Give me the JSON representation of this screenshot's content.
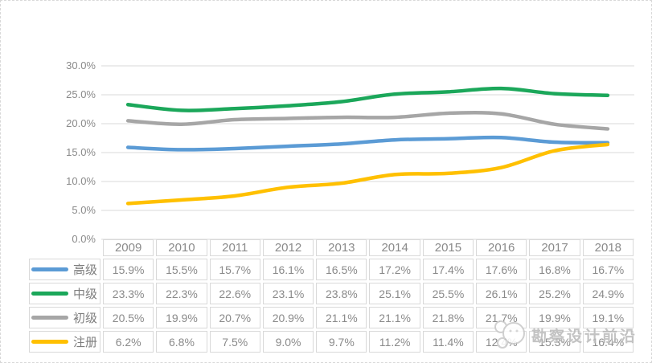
{
  "chart_data": {
    "type": "line",
    "categories": [
      "2009",
      "2010",
      "2011",
      "2012",
      "2013",
      "2014",
      "2015",
      "2016",
      "2017",
      "2018"
    ],
    "series": [
      {
        "name": "高级",
        "color": "#5B9BD5",
        "values": [
          15.9,
          15.5,
          15.7,
          16.1,
          16.5,
          17.2,
          17.4,
          17.6,
          16.8,
          16.7
        ]
      },
      {
        "name": "中级",
        "color": "#1BA75A",
        "values": [
          23.3,
          22.3,
          22.6,
          23.1,
          23.8,
          25.1,
          25.5,
          26.1,
          25.2,
          24.9
        ]
      },
      {
        "name": "初级",
        "color": "#A6A6A6",
        "values": [
          20.5,
          19.9,
          20.7,
          20.9,
          21.1,
          21.1,
          21.8,
          21.7,
          19.9,
          19.1
        ]
      },
      {
        "name": "注册",
        "color": "#FFC000",
        "values": [
          6.2,
          6.8,
          7.5,
          9.0,
          9.7,
          11.2,
          11.4,
          12.4,
          15.3,
          16.4
        ]
      }
    ],
    "title": "",
    "xlabel": "",
    "ylabel": "",
    "ylim": [
      0,
      30
    ],
    "y_tick_labels": [
      "0.0%",
      "5.0%",
      "10.0%",
      "15.0%",
      "20.0%",
      "25.0%",
      "30.0%"
    ],
    "grid": true,
    "smooth_lines": true,
    "legend_position": "data-table-left",
    "gridline_color": "#D9D9D9"
  },
  "table": {
    "columns": [
      "2009",
      "2010",
      "2011",
      "2012",
      "2013",
      "2014",
      "2015",
      "2016",
      "2017",
      "2018"
    ],
    "rows": [
      {
        "label": "高级",
        "color": "#5B9BD5",
        "values": [
          "15.9%",
          "15.5%",
          "15.7%",
          "16.1%",
          "16.5%",
          "17.2%",
          "17.4%",
          "17.6%",
          "16.8%",
          "16.7%"
        ]
      },
      {
        "label": "中级",
        "color": "#1BA75A",
        "values": [
          "23.3%",
          "22.3%",
          "22.6%",
          "23.1%",
          "23.8%",
          "25.1%",
          "25.5%",
          "26.1%",
          "25.2%",
          "24.9%"
        ]
      },
      {
        "label": "初级",
        "color": "#A6A6A6",
        "values": [
          "20.5%",
          "19.9%",
          "20.7%",
          "20.9%",
          "21.1%",
          "21.1%",
          "21.8%",
          "21.7%",
          "19.9%",
          "19.1%"
        ]
      },
      {
        "label": "注册",
        "color": "#FFC000",
        "values": [
          "6.2%",
          "6.8%",
          "7.5%",
          "9.0%",
          "9.7%",
          "11.2%",
          "11.4%",
          "12.4%",
          "15.3%",
          "16.4%"
        ]
      }
    ]
  },
  "watermark": {
    "text": "勘察设计前沿",
    "icon": "panda-mascot-icon",
    "color": "#B9B9B9"
  }
}
